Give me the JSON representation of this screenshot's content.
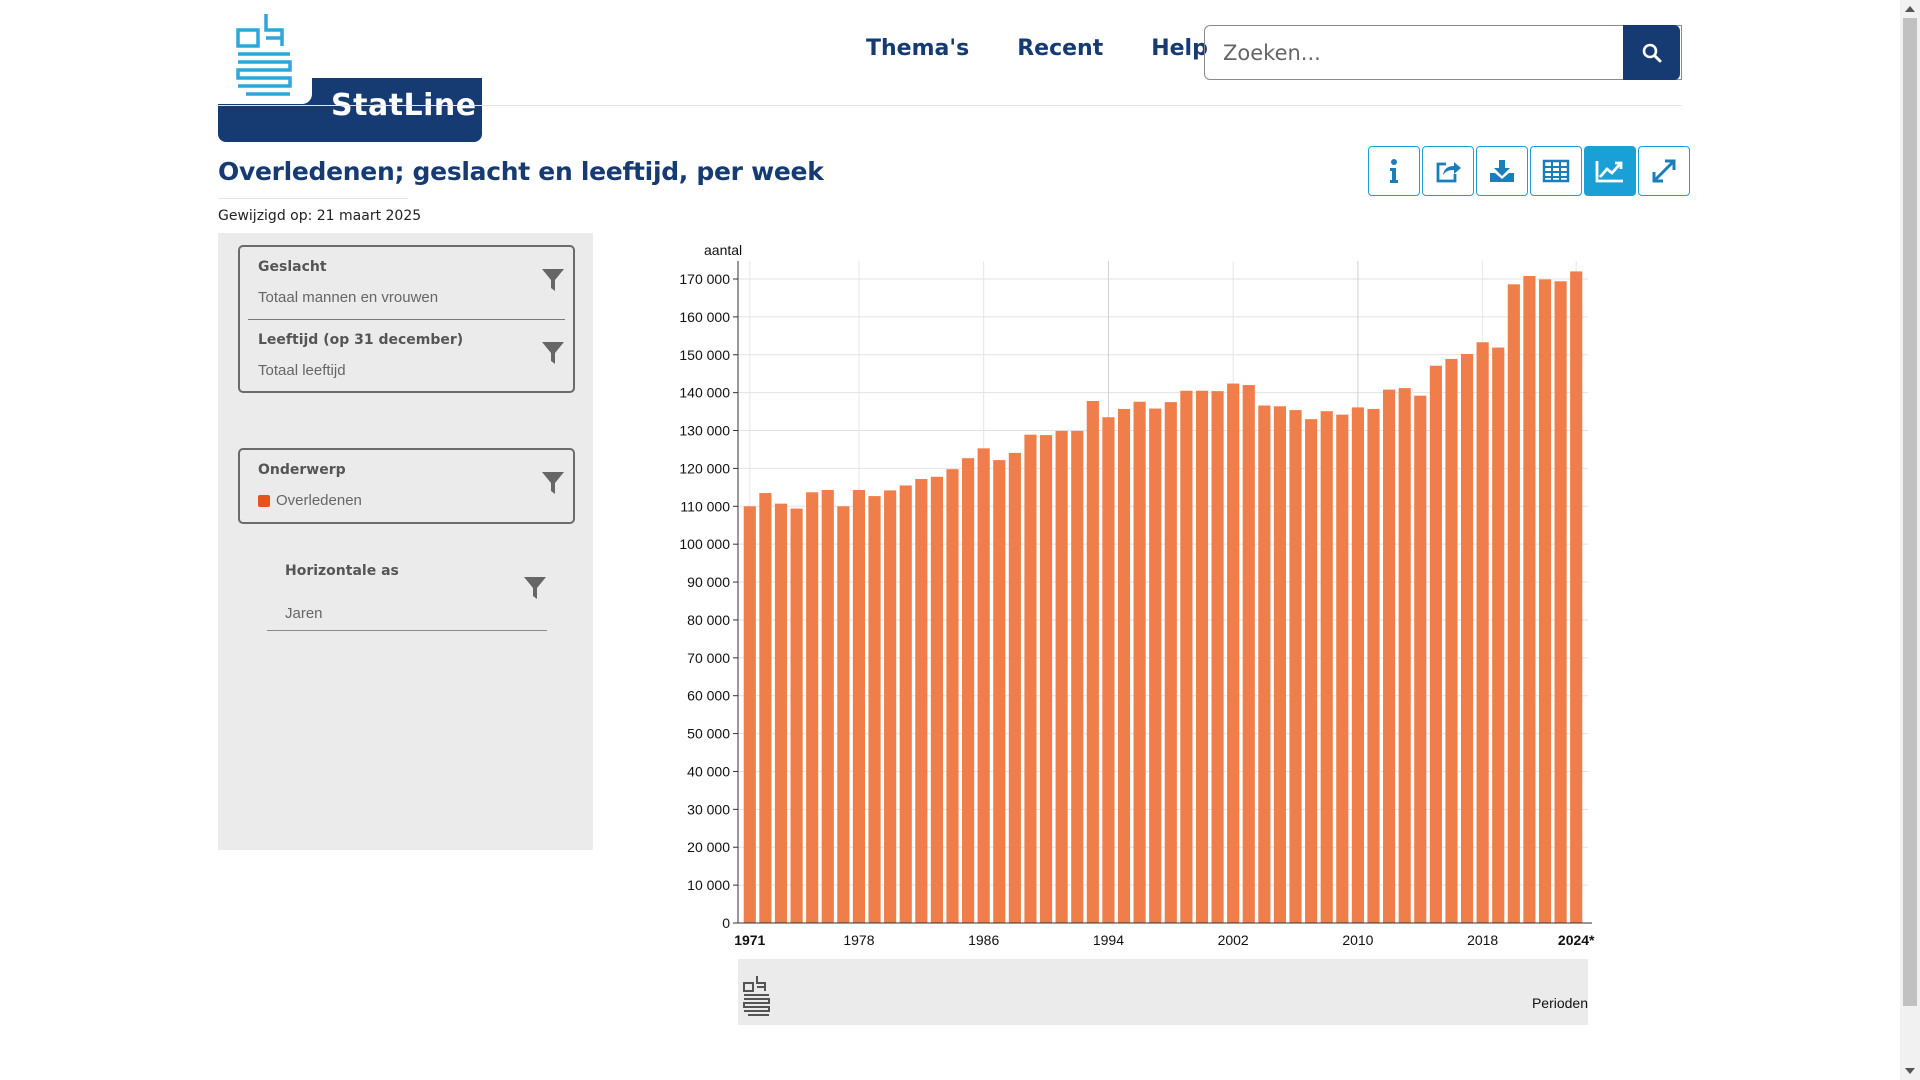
{
  "header": {
    "logo_text": "StatLine",
    "nav": [
      "Thema's",
      "Recent",
      "Help"
    ],
    "search_placeholder": "Zoeken..."
  },
  "page": {
    "title": "Overledenen; geslacht en leeftijd, per week",
    "modified": "Gewijzigd op: 21 maart 2025"
  },
  "toolbar": {
    "icons": [
      "info-icon",
      "share-icon",
      "download-icon",
      "table-icon",
      "chart-icon",
      "fullscreen-icon"
    ],
    "active": "chart-icon"
  },
  "sidebar": {
    "filters": [
      {
        "label": "Geslacht",
        "value": "Totaal mannen en vrouwen"
      },
      {
        "label": "Leeftijd (op 31 december)",
        "value": "Totaal leeftijd"
      }
    ],
    "subject": {
      "label": "Onderwerp",
      "value": "Overledenen",
      "color": "#e8511a"
    },
    "horizontal_axis": {
      "label": "Horizontale as",
      "value": "Jaren"
    }
  },
  "chart_data": {
    "type": "bar",
    "ylabel": "aantal",
    "xlabel": "Perioden",
    "ylim": [
      0,
      170000
    ],
    "yticks": [
      "0",
      "10 000",
      "20 000",
      "30 000",
      "40 000",
      "50 000",
      "60 000",
      "70 000",
      "80 000",
      "90 000",
      "100 000",
      "110 000",
      "120 000",
      "130 000",
      "140 000",
      "150 000",
      "160 000",
      "170 000"
    ],
    "xticks": [
      "1971",
      "1978",
      "1986",
      "1994",
      "2002",
      "2010",
      "2018",
      "2024*"
    ],
    "bar_color": "#f07e4b",
    "categories": [
      "1971",
      "1972",
      "1973",
      "1974",
      "1975",
      "1976",
      "1977",
      "1978",
      "1979",
      "1980",
      "1981",
      "1982",
      "1983",
      "1984",
      "1985",
      "1986",
      "1987",
      "1988",
      "1989",
      "1990",
      "1991",
      "1992",
      "1993",
      "1994",
      "1995",
      "1996",
      "1997",
      "1998",
      "1999",
      "2000",
      "2001",
      "2002",
      "2003",
      "2004",
      "2005",
      "2006",
      "2007",
      "2008",
      "2009",
      "2010",
      "2011",
      "2012",
      "2013",
      "2014",
      "2015",
      "2016",
      "2017",
      "2018",
      "2019",
      "2020",
      "2021",
      "2022",
      "2023",
      "2024*"
    ],
    "values": [
      110000,
      113500,
      110700,
      109400,
      113700,
      114300,
      110000,
      114300,
      112700,
      114200,
      115500,
      117200,
      117800,
      119800,
      122700,
      125300,
      122200,
      124100,
      128900,
      128800,
      129900,
      129900,
      137800,
      133500,
      135700,
      137600,
      135800,
      137500,
      140500,
      140500,
      140400,
      142400,
      142000,
      136600,
      136400,
      135400,
      133000,
      135100,
      134200,
      136100,
      135700,
      140800,
      141200,
      139200,
      147100,
      148900,
      150200,
      153300,
      151900,
      168600,
      170800,
      169900,
      169400,
      172000
    ]
  }
}
